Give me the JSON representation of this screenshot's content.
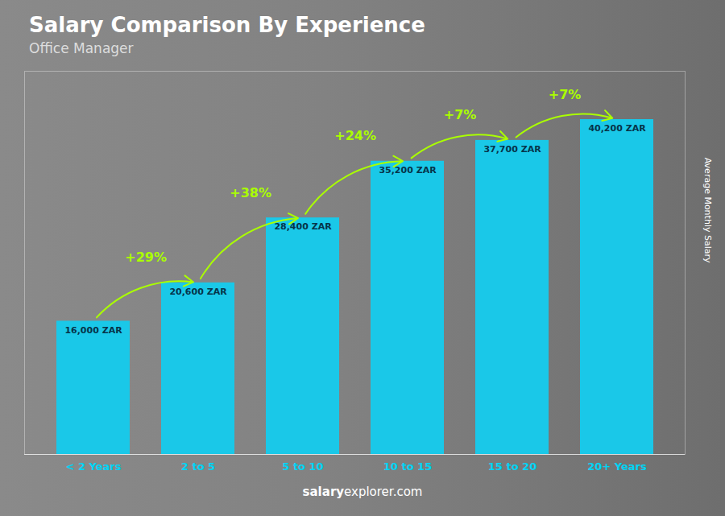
{
  "chart_data": {
    "type": "bar",
    "title": "Salary Comparison By Experience",
    "subtitle": "Office Manager",
    "categories": [
      "< 2 Years",
      "2 to 5",
      "5 to 10",
      "10 to 15",
      "15 to 20",
      "20+ Years"
    ],
    "values": [
      16000,
      20600,
      28400,
      35200,
      37700,
      40200
    ],
    "value_labels": [
      "16,000 ZAR",
      "20,600 ZAR",
      "28,400 ZAR",
      "35,200 ZAR",
      "37,700 ZAR",
      "40,200 ZAR"
    ],
    "data_labels": true,
    "color": "#1ac8e8",
    "ylabel": "Average Monthly Salary",
    "ylim": [
      0,
      46000
    ],
    "tick_labels": "x",
    "annotations": [
      "+29%",
      "+38%",
      "+24%",
      "+7%",
      "+7%"
    ],
    "footer": [
      "salary",
      "explorer.com"
    ]
  }
}
